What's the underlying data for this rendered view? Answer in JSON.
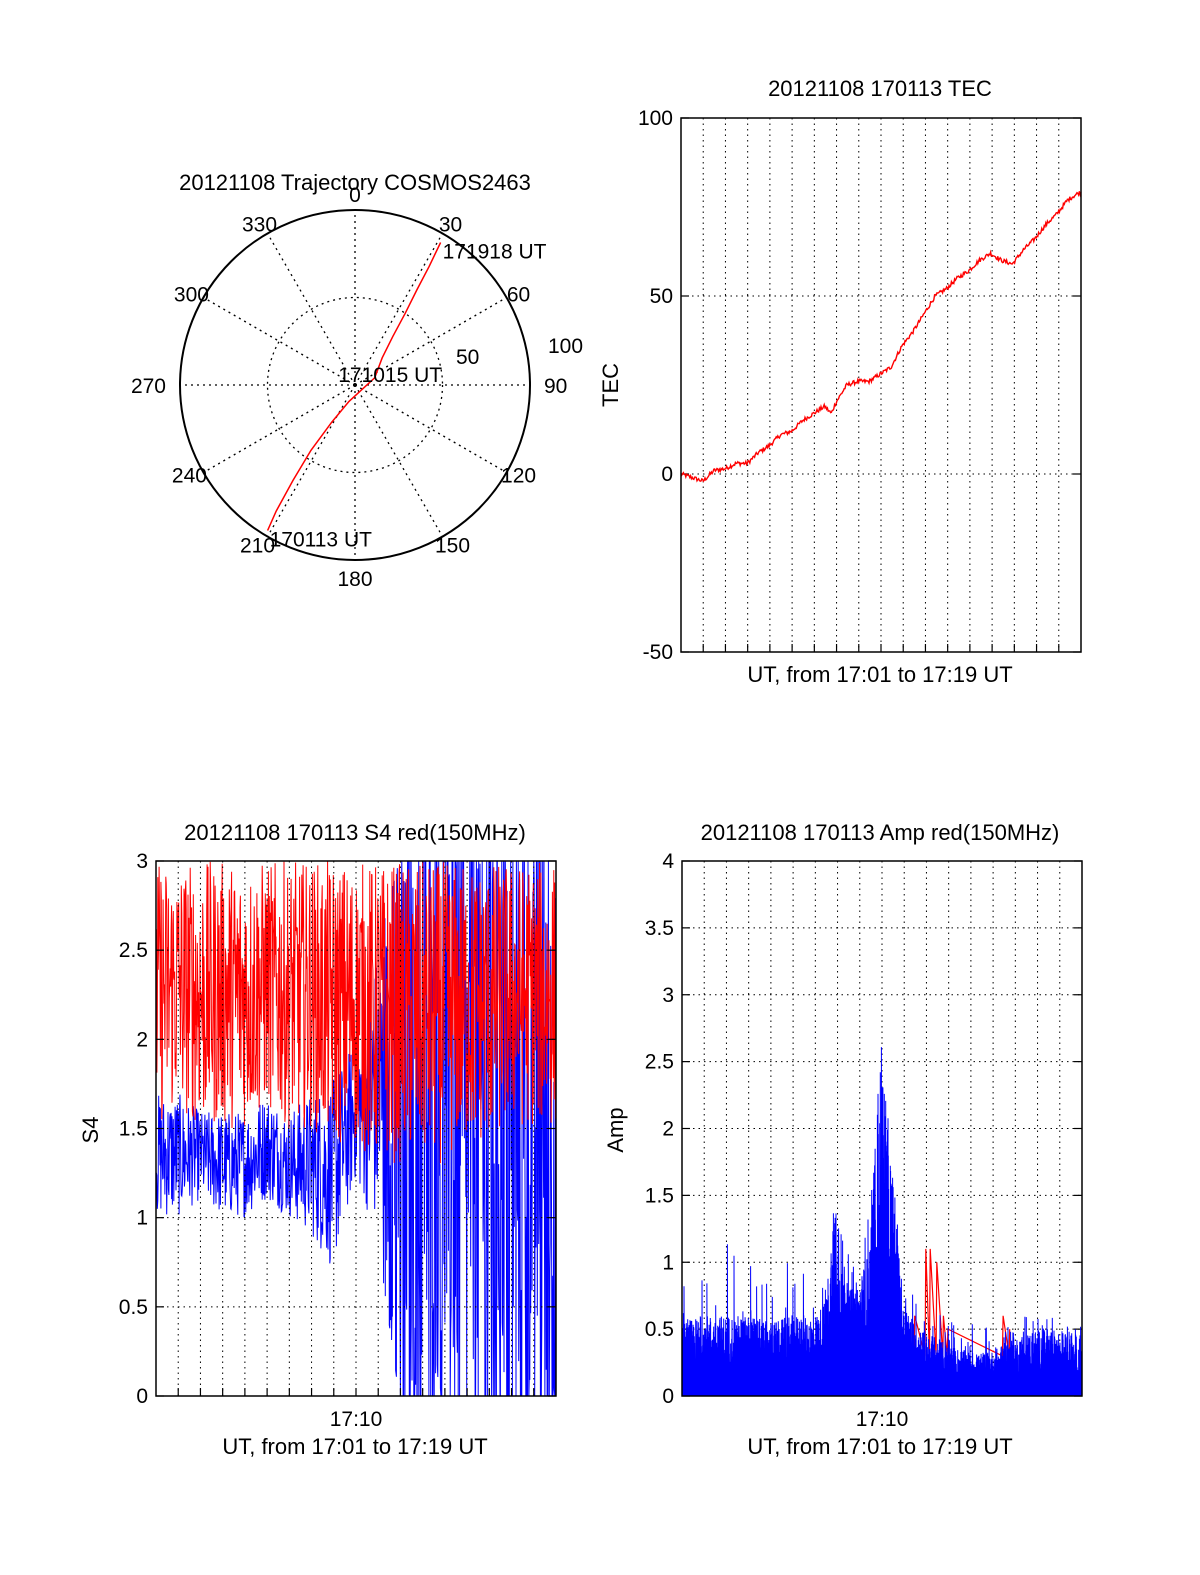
{
  "figure": {
    "date": "20121108",
    "colors": {
      "red": "#ff0000",
      "blue": "#0000ff",
      "axis": "#000000",
      "grid": "#000000"
    }
  },
  "chart_data": [
    {
      "id": "trajectory",
      "type": "polar",
      "title": "20121108 Trajectory COSMOS2463",
      "angle_labels": [
        "0",
        "30",
        "60",
        "90",
        "120",
        "150",
        "180",
        "210",
        "240",
        "270",
        "300",
        "330"
      ],
      "radial_labels": [
        "50",
        "100"
      ],
      "radial_range": [
        0,
        100
      ],
      "grid": true,
      "trajectory": {
        "color": "#ff0000",
        "points_az_r": [
          [
            31,
            95
          ],
          [
            32,
            80
          ],
          [
            33,
            65
          ],
          [
            35,
            50
          ],
          [
            38,
            35
          ],
          [
            45,
            22
          ],
          [
            70,
            12
          ],
          [
            200,
            10
          ],
          [
            212,
            25
          ],
          [
            214,
            45
          ],
          [
            213,
            65
          ],
          [
            212,
            85
          ],
          [
            211,
            97
          ]
        ]
      },
      "annotations": [
        {
          "text": "171918 UT",
          "az": 31,
          "r": 95
        },
        {
          "text": "171015 UT",
          "az": 100,
          "r": 3
        },
        {
          "text": "170113 UT",
          "az": 211,
          "r": 97
        }
      ]
    },
    {
      "id": "tec",
      "type": "line",
      "title": "20121108 170113 TEC",
      "ylabel": "TEC",
      "xlabel": "UT, from 17:01 to 17:19 UT",
      "ylim": [
        -50,
        100
      ],
      "yticks": [
        "-50",
        "0",
        "50",
        "100"
      ],
      "xlim_min": [
        0,
        18.1
      ],
      "grid": true,
      "series": [
        {
          "color": "#ff0000",
          "x": [
            0,
            0.5,
            1,
            1.5,
            2,
            2.5,
            3,
            3.5,
            4,
            4.5,
            5,
            5.5,
            6,
            6.5,
            6.8,
            7,
            7.5,
            8,
            8.5,
            9,
            9.5,
            10,
            10.5,
            11,
            11.5,
            12,
            12.5,
            13,
            13.5,
            14,
            14.5,
            15,
            15.5,
            16,
            16.5,
            17,
            17.5,
            18,
            18.1
          ],
          "y": [
            0,
            -1,
            -2,
            1,
            1.5,
            3,
            3,
            6,
            8,
            11,
            12,
            15,
            17,
            19,
            17,
            20,
            25,
            26,
            26,
            28,
            30,
            36,
            40,
            45,
            50,
            52,
            55,
            57,
            60,
            62,
            60,
            59,
            63,
            66,
            70,
            73,
            77,
            79,
            79
          ]
        }
      ]
    },
    {
      "id": "s4",
      "type": "line",
      "title": "20121108 170113 S4 red(150MHz)",
      "ylabel": "S4",
      "xlabel": "UT, from 17:01 to 17:19 UT",
      "xtick_labels": [
        "17:10"
      ],
      "ylim": [
        0,
        3
      ],
      "yticks": [
        "0",
        "0.5",
        "1",
        "1.5",
        "2",
        "2.5",
        "3"
      ],
      "xlim_min": [
        0,
        18.1
      ],
      "grid": true,
      "series": [
        {
          "color": "#ff0000",
          "x": [
            0,
            1,
            2,
            3,
            4,
            5,
            6,
            7,
            8,
            9,
            10,
            11,
            12,
            13,
            14,
            15,
            16,
            17,
            18
          ],
          "y_low": [
            1.5,
            1.6,
            1.5,
            1.5,
            1.5,
            1.6,
            1.5,
            1.5,
            1.4,
            1.4,
            1.3,
            1.3,
            1.3,
            1.3,
            1.4,
            1.4,
            1.5,
            1.5,
            1.5
          ],
          "y_high": [
            3,
            3,
            3,
            3,
            3,
            3,
            3,
            3,
            3,
            3,
            3,
            3,
            3,
            3,
            3,
            3,
            3,
            3,
            3
          ]
        },
        {
          "color": "#0000ff",
          "x": [
            0,
            1,
            2,
            3,
            4,
            5,
            6,
            7,
            8,
            9,
            10,
            11,
            12,
            13,
            14,
            15,
            16,
            17,
            18
          ],
          "y_low": [
            1.0,
            1.0,
            1.1,
            1.0,
            1.0,
            1.1,
            1.0,
            0.9,
            0.7,
            1.2,
            0.9,
            0,
            0,
            0,
            0,
            0,
            0,
            0,
            0
          ],
          "y_high": [
            1.7,
            1.7,
            1.6,
            1.6,
            1.6,
            1.7,
            1.6,
            1.7,
            1.8,
            2.0,
            2.5,
            3,
            3,
            3,
            3,
            3,
            3,
            3,
            3
          ]
        }
      ]
    },
    {
      "id": "amp",
      "type": "line",
      "title": "20121108 170113 Amp red(150MHz)",
      "ylabel": "Amp",
      "xlabel": "UT, from 17:01 to 17:19 UT",
      "xtick_labels": [
        "17:10"
      ],
      "ylim": [
        0,
        4
      ],
      "yticks": [
        "0",
        "0.5",
        "1",
        "1.5",
        "2",
        "2.5",
        "3",
        "3.5",
        "4"
      ],
      "xlim_min": [
        0,
        18.1
      ],
      "grid": true,
      "series": [
        {
          "color": "#0000ff",
          "x": [
            0,
            1,
            2,
            3,
            4,
            5,
            6,
            6.5,
            7,
            7.5,
            8,
            8.5,
            9,
            10,
            11,
            12,
            13,
            14,
            15,
            16,
            17,
            18
          ],
          "y_base": [
            0.5,
            0.55,
            0.55,
            0.55,
            0.5,
            0.55,
            0.55,
            0.65,
            1.5,
            0.7,
            0.8,
            1.0,
            2.5,
            0.6,
            0.45,
            0.35,
            0.3,
            0.3,
            0.4,
            0.45,
            0.45,
            0.4
          ],
          "y_peak": [
            1.0,
            1.1,
            1.2,
            1.0,
            1.0,
            1.0,
            0.9,
            1.0,
            1.55,
            1.1,
            1.3,
            1.5,
            2.5,
            0.9,
            0.75,
            0.6,
            0.55,
            0.5,
            0.55,
            0.65,
            0.65,
            0.55
          ]
        },
        {
          "color": "#ff0000",
          "x": [
            10.5,
            11,
            11.2,
            11.5,
            11.8,
            12,
            14.5,
            14.8
          ],
          "y_peak": [
            0.6,
            1.1,
            1.1,
            1.0,
            0.6,
            0.5,
            0.6,
            0.5
          ]
        }
      ]
    }
  ]
}
